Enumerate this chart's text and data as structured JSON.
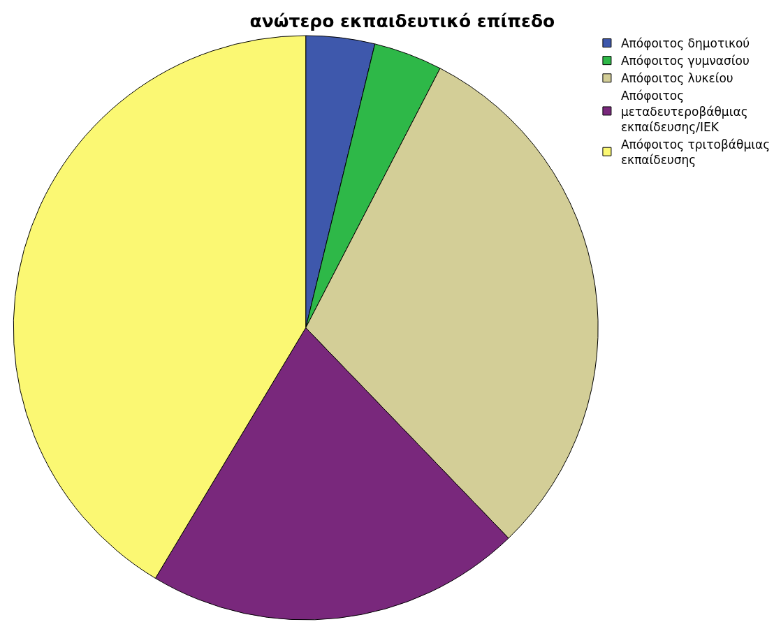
{
  "chart_data": {
    "type": "pie",
    "title": "ανώτερο εκπαιδευτικό επίπεδο",
    "categories": [
      "Απόφοιτος δημοτικού",
      "Απόφοιτος γυμνασίου",
      "Απόφοιτος λυκείου",
      "Απόφοιτος μεταδευτεροβάθμιας εκπαίδευσης/ΙΕΚ",
      "Απόφοιτος τριτοβάθμιας εκπαίδευσης"
    ],
    "values": [
      3.8,
      3.8,
      30.2,
      20.8,
      41.4
    ],
    "colors": [
      "#3e58ac",
      "#2eb848",
      "#d3ce97",
      "#79287c",
      "#fbf873"
    ],
    "legend": "top right"
  }
}
